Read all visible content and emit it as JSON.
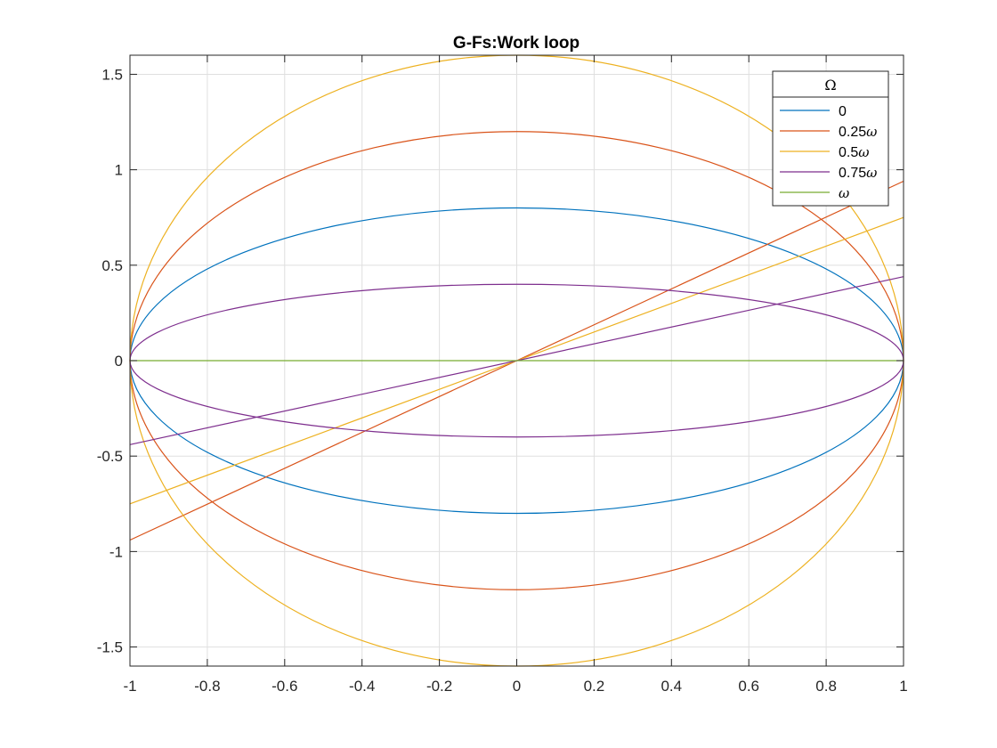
{
  "chart_data": {
    "type": "line",
    "title": "G-Fs:Work loop",
    "xlabel": "",
    "ylabel": "",
    "xlim": [
      -1,
      1
    ],
    "ylim": [
      -1.6,
      1.6
    ],
    "grid": true,
    "xticks": [
      -1,
      -0.8,
      -0.6,
      -0.4,
      -0.2,
      0,
      0.2,
      0.4,
      0.6,
      0.8,
      1
    ],
    "xtick_labels": [
      "-1",
      "-0.8",
      "-0.6",
      "-0.4",
      "-0.2",
      "0",
      "0.2",
      "0.4",
      "0.6",
      "0.8",
      "1"
    ],
    "yticks": [
      -1.5,
      -1,
      -0.5,
      0,
      0.5,
      1,
      1.5
    ],
    "ytick_labels": [
      "-1.5",
      "-1",
      "-0.5",
      "0",
      "0.5",
      "1",
      "1.5"
    ],
    "legend": {
      "title": "Ω",
      "placement": "top-right",
      "entries": [
        {
          "text": "0",
          "suffix": ""
        },
        {
          "text": "0.25",
          "suffix": "ω"
        },
        {
          "text": "0.5",
          "suffix": "ω"
        },
        {
          "text": "0.75",
          "suffix": "ω"
        },
        {
          "text": "",
          "suffix": "ω"
        }
      ]
    },
    "series": [
      {
        "legend": "0",
        "color": "#0072BD",
        "loops": [
          {
            "kind": "ellipse",
            "a": 1,
            "b": 0.8
          }
        ]
      },
      {
        "legend": "0.25ω",
        "color": "#D95319",
        "loops": [
          {
            "kind": "ellipse",
            "a": 1,
            "b": 1.2
          },
          {
            "kind": "line",
            "x": [
              -1,
              1
            ],
            "y": [
              -0.94,
              0.94
            ]
          }
        ]
      },
      {
        "legend": "0.5ω",
        "color": "#EDB120",
        "loops": [
          {
            "kind": "ellipse",
            "a": 1,
            "b": 1.6
          },
          {
            "kind": "line",
            "x": [
              -1,
              1
            ],
            "y": [
              -0.75,
              0.75
            ]
          }
        ]
      },
      {
        "legend": "0.75ω",
        "color": "#7E2F8E",
        "loops": [
          {
            "kind": "ellipse",
            "a": 1,
            "b": 0.4
          },
          {
            "kind": "line",
            "x": [
              -1,
              1
            ],
            "y": [
              -0.44,
              0.44
            ]
          }
        ]
      },
      {
        "legend": "ω",
        "color": "#77AC30",
        "loops": [
          {
            "kind": "line",
            "x": [
              -1,
              1
            ],
            "y": [
              0,
              0
            ]
          }
        ]
      }
    ]
  }
}
